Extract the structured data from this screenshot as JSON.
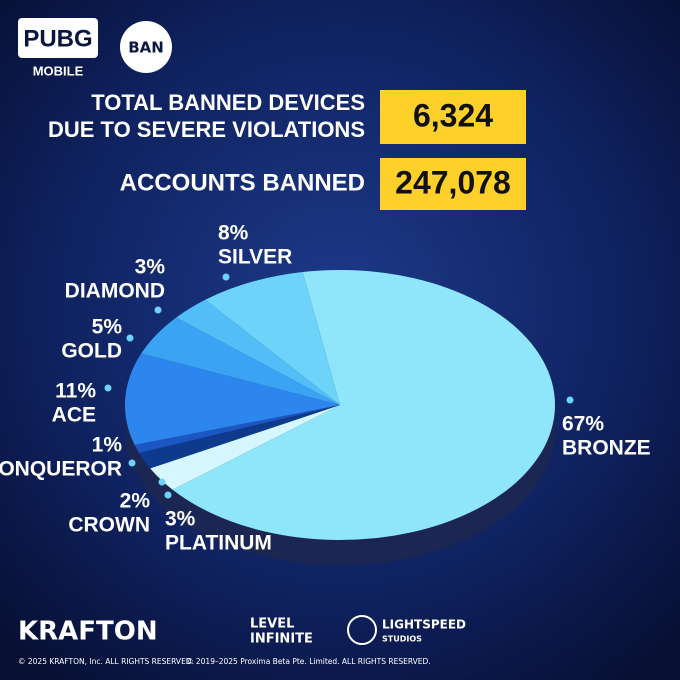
{
  "logo": {
    "brand": "PUBG",
    "sub": "MOBILE",
    "badge": "BAN"
  },
  "stats": [
    {
      "label_lines": [
        "TOTAL BANNED DEVICES",
        "DUE TO SEVERE VIOLATIONS"
      ],
      "value": "6,324"
    },
    {
      "label_lines": [
        "ACCOUNTS BANNED"
      ],
      "value": "247,078"
    }
  ],
  "chart_data": {
    "type": "pie",
    "categories": [
      "BRONZE",
      "PLATINUM",
      "CROWN",
      "CONQUEROR",
      "ACE",
      "GOLD",
      "DIAMOND",
      "SILVER"
    ],
    "values": [
      67,
      3,
      2,
      1,
      11,
      5,
      3,
      8
    ],
    "value_labels": [
      "67%",
      "3%",
      "2%",
      "1%",
      "11%",
      "5%",
      "3%",
      "8%"
    ],
    "colors": [
      "#8fe6fb",
      "#d6f7ff",
      "#0d3a8c",
      "#1c56c2",
      "#2c86ee",
      "#3aa3f4",
      "#52bdf6",
      "#6ed3f8"
    ]
  },
  "footer": {
    "brands": [
      "KRAFTON",
      "LEVEL",
      "INFINITE",
      "LIGHTSPEED",
      "STUDIOS"
    ],
    "copyright": [
      "© 2025 KRAFTON, Inc. ALL RIGHTS RESERVED.",
      "© 2019–2025 Proxima Beta Pte. Limited. ALL RIGHTS RESERVED."
    ]
  }
}
